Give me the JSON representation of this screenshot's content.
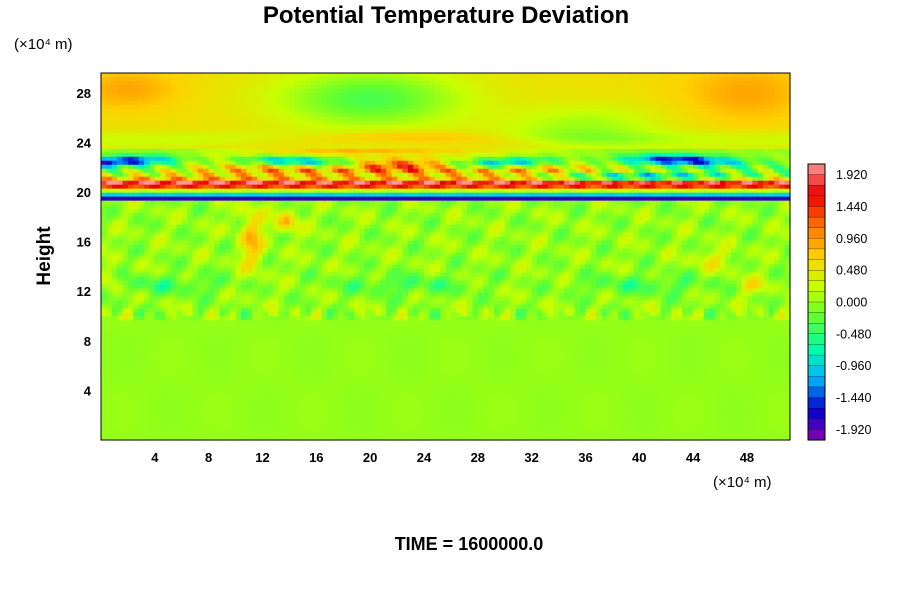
{
  "chart_data": {
    "type": "heatmap",
    "title": "Potential Temperature Deviation",
    "ylabel": "Height",
    "xlabel": "",
    "x_unit": "(×10⁴ m)",
    "y_unit": "(×10⁴ m)",
    "xlim": [
      0,
      51.2
    ],
    "ylim": [
      0,
      29.6
    ],
    "x_ticks": [
      4,
      8,
      12,
      16,
      20,
      24,
      28,
      32,
      36,
      40,
      44,
      48
    ],
    "y_ticks": [
      4,
      8,
      12,
      16,
      20,
      24,
      28
    ],
    "colorbar": {
      "min": -2.08,
      "max": 2.08,
      "step": 0.16,
      "labels": [
        "1.920",
        "1.440",
        "0.960",
        "0.480",
        "0.000",
        "-0.480",
        "-0.960",
        "-1.440",
        "-1.920"
      ],
      "colors": [
        "#8a00b0",
        "#0000cc",
        "#00b4ff",
        "#00ffaa",
        "#60ff30",
        "#c8ff00",
        "#ffd000",
        "#ff7000",
        "#e80000",
        "#ff9898"
      ]
    },
    "footer": "TIME = 1600000.0",
    "field_description": {
      "lower_layer": {
        "height_range": [
          0,
          9.6
        ],
        "value": 0.0
      },
      "turbulent_layer": {
        "height_range": [
          9.6,
          19.2
        ],
        "value_range": [
          -0.4,
          0.4
        ]
      },
      "strong_gradient_band": {
        "height_range": [
          19.2,
          23.2
        ],
        "value_range": [
          -2.0,
          2.0
        ]
      },
      "upper_layer": {
        "height_range": [
          23.2,
          29.6
        ],
        "value_range": [
          -0.8,
          0.8
        ]
      }
    }
  }
}
